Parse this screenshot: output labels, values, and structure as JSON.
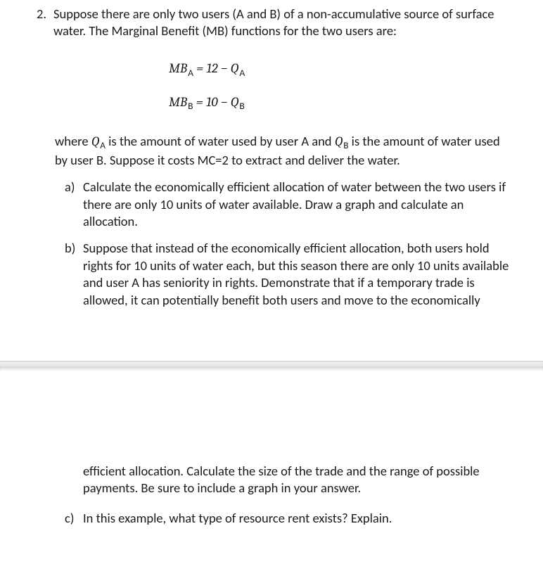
{
  "question": {
    "number": "2.",
    "intro1": "Suppose there are only two users (A and B) of a non-accumulative source of surface water. The Marginal Benefit (MB) functions for the two users are:",
    "eqA_lhs": "MB",
    "eqA_sub": "A",
    "eqA_rhs_a": "  =  12 − ",
    "eqA_rhs_q": "Q",
    "eqA_rhs_qs": "A",
    "eqB_lhs": "MB",
    "eqB_sub": "B",
    "eqB_rhs_a": "  =  10 − ",
    "eqB_rhs_q": "Q",
    "eqB_rhs_qs": "B",
    "where_1": "where ",
    "where_QA_q": "Q",
    "where_QA_s": "A",
    "where_2": " is the amount of water used by user A and ",
    "where_QB_q": "Q",
    "where_QB_s": "B",
    "where_3": " is the amount of water used by user B. Suppose it costs MC=2 to extract and deliver the water.",
    "parts": {
      "a": {
        "label": "a)",
        "text": "Calculate the economically efficient allocation of water between the two users if there are only  10 units of water available. Draw a graph and calculate an allocation."
      },
      "b": {
        "label": "b)",
        "text": "Suppose that instead of the economically efficient allocation, both users hold rights for 10 units of water each, but this season there are only 10 units available and user A has seniority in rights.  Demonstrate that if a temporary trade is allowed, it can potentially benefit both users and move to the economically",
        "cont": "efficient allocation. Calculate the size of the trade and the range of possible payments. Be sure to include a graph in your answer."
      },
      "c": {
        "label": "c)",
        "text": "In this example, what type of resource rent exists? Explain."
      }
    }
  }
}
